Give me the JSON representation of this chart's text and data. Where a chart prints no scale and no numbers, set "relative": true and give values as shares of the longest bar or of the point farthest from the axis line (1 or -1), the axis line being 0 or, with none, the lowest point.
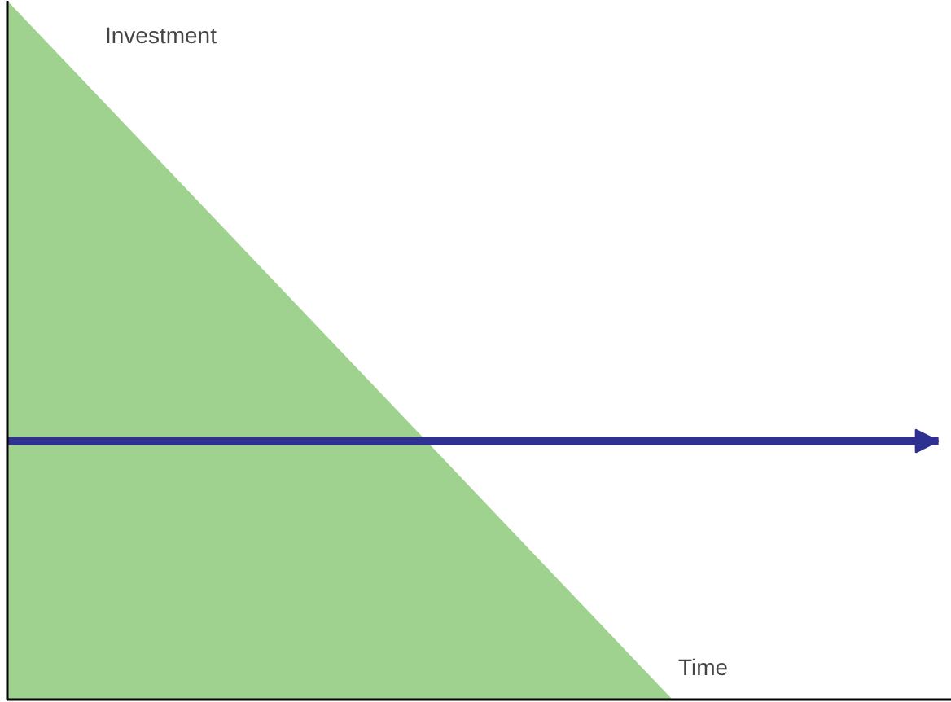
{
  "chart_data": {
    "type": "area",
    "relative": true,
    "xlabel": "Time",
    "ylabel": "Investment",
    "categories": [
      null,
      null,
      null,
      null,
      null,
      null,
      null,
      null
    ],
    "series": [
      {
        "color": "#9fd28f",
        "values": [
          1,
          0.8,
          0.6,
          0.4,
          0.2,
          0,
          null,
          null
        ]
      },
      {
        "type": "line",
        "color": "#2e3192",
        "values": [
          0.37,
          0.37,
          0.37,
          0.37,
          0.37,
          0.37,
          0.37,
          0.37
        ]
      }
    ]
  }
}
